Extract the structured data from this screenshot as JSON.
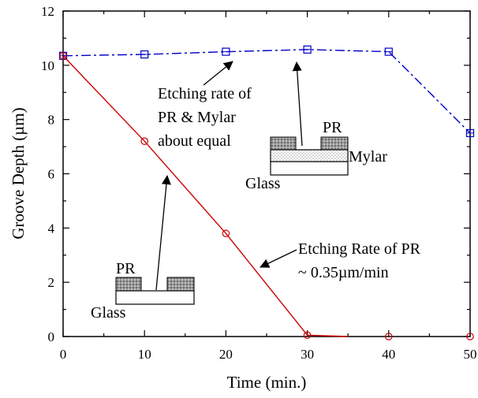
{
  "chart_data": {
    "type": "line",
    "title": "",
    "xlabel": "Time (min.)",
    "ylabel": "Groove Depth (µm)",
    "xlim": [
      0,
      50
    ],
    "ylim": [
      0,
      12
    ],
    "xticks": [
      0,
      10,
      20,
      30,
      40,
      50
    ],
    "yticks": [
      0,
      2,
      4,
      6,
      8,
      10,
      12
    ],
    "grid": false,
    "series": [
      {
        "marker": "square",
        "color": "#0000cc",
        "line_style": "dash-dot",
        "x": [
          0,
          10,
          20,
          30,
          40,
          50
        ],
        "y": [
          10.35,
          10.4,
          10.5,
          10.58,
          10.5,
          7.5
        ]
      },
      {
        "marker": "circle",
        "color": "#cc0000",
        "line_style": "solid",
        "x": [
          0,
          10,
          20,
          30,
          40,
          50
        ],
        "y": [
          10.35,
          7.2,
          3.8,
          0.05,
          0,
          0
        ],
        "line_x": [
          0,
          10,
          20,
          30,
          35
        ],
        "line_y": [
          10.35,
          7.2,
          3.8,
          0.05,
          0
        ]
      }
    ],
    "annotations": [
      {
        "id": "mylar",
        "lines": [
          "Etching rate of",
          "PR & Mylar",
          "about equal"
        ]
      },
      {
        "id": "pr",
        "lines": [
          "Etching Rate of PR",
          "~ 0.35µm/min"
        ]
      }
    ],
    "insets": {
      "mylar": {
        "pr_label": "PR",
        "mylar_label": "Mylar",
        "glass_label": "Glass"
      },
      "glass": {
        "pr_label": "PR",
        "glass_label": "Glass"
      }
    }
  }
}
